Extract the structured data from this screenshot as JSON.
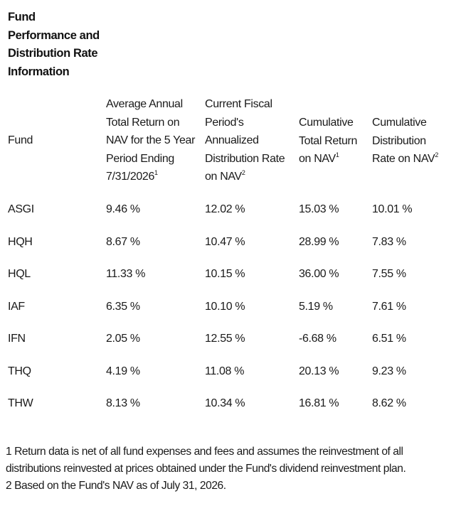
{
  "title_lines": [
    "Fund",
    "Performance and",
    "Distribution Rate",
    "Information"
  ],
  "columns": {
    "fund": {
      "lines": [
        "Fund"
      ]
    },
    "avg_annual": {
      "lines": [
        "Average Annual",
        "Total Return on",
        "NAV for the 5 Year",
        "Period Ending",
        "7/31/2026"
      ],
      "footnote": "1"
    },
    "current_fiscal": {
      "lines": [
        "Current Fiscal",
        "Period's",
        "Annualized",
        "Distribution Rate",
        "on NAV"
      ],
      "footnote": "2"
    },
    "cumulative_total": {
      "lines": [
        "Cumulative",
        "Total Return",
        "on NAV"
      ],
      "footnote": "1"
    },
    "cumulative_distribution": {
      "lines": [
        "Cumulative",
        "Distribution",
        "Rate on NAV"
      ],
      "footnote": "2"
    }
  },
  "rows": [
    {
      "fund": "ASGI",
      "avg_annual": "9.46 %",
      "current_fiscal": "12.02 %",
      "cumulative_total": "15.03 %",
      "cumulative_distribution": "10.01 %"
    },
    {
      "fund": "HQH",
      "avg_annual": "8.67 %",
      "current_fiscal": "10.47 %",
      "cumulative_total": "28.99 %",
      "cumulative_distribution": "7.83 %"
    },
    {
      "fund": "HQL",
      "avg_annual": "11.33 %",
      "current_fiscal": "10.15 %",
      "cumulative_total": "36.00 %",
      "cumulative_distribution": "7.55 %"
    },
    {
      "fund": "IAF",
      "avg_annual": "6.35 %",
      "current_fiscal": "10.10 %",
      "cumulative_total": "5.19 %",
      "cumulative_distribution": "7.61 %"
    },
    {
      "fund": "IFN",
      "avg_annual": "2.05 %",
      "current_fiscal": "12.55 %",
      "cumulative_total": "-6.68 %",
      "cumulative_distribution": "6.51 %"
    },
    {
      "fund": "THQ",
      "avg_annual": "4.19 %",
      "current_fiscal": "11.08 %",
      "cumulative_total": "20.13 %",
      "cumulative_distribution": "9.23 %"
    },
    {
      "fund": "THW",
      "avg_annual": "8.13 %",
      "current_fiscal": "10.34 %",
      "cumulative_total": "16.81 %",
      "cumulative_distribution": "8.62 %"
    }
  ],
  "footnotes": {
    "note1_line1": "1 Return data is net of all fund expenses and fees and assumes the reinvestment of all",
    "note1_line2": "distributions reinvested at prices obtained under the Fund's dividend reinvestment plan.",
    "note2": "2 Based on the Fund's NAV as of July 31, 2026."
  }
}
